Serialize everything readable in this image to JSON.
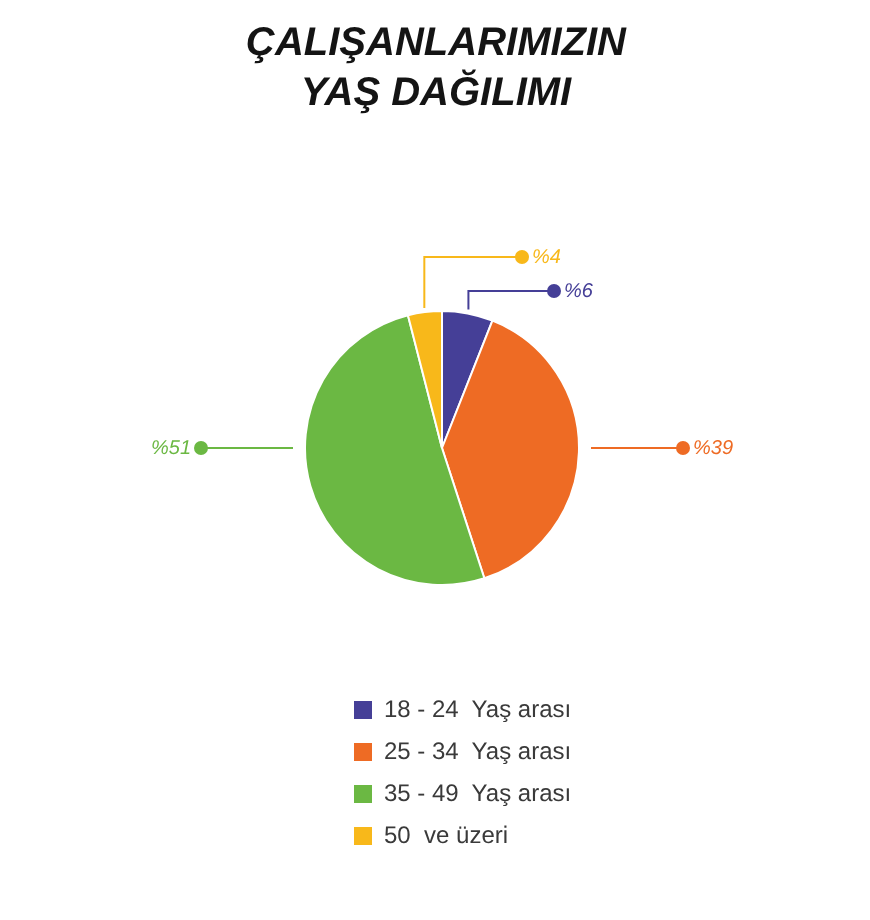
{
  "chart_data": {
    "type": "pie",
    "title": "ÇALIŞANLARIMIZIN YAŞ DAĞILIMI",
    "categories": [
      "18 - 24  Yaş arası",
      "25 - 34  Yaş arası",
      "35 - 49  Yaş arası",
      "50  ve üzeri"
    ],
    "values": [
      6,
      39,
      51,
      4
    ],
    "colors": [
      "#453f97",
      "#ee6b24",
      "#6bb843",
      "#f8b81a"
    ],
    "value_labels": [
      "%6",
      "%39",
      "%51",
      "%4"
    ],
    "legend": "bottom"
  }
}
